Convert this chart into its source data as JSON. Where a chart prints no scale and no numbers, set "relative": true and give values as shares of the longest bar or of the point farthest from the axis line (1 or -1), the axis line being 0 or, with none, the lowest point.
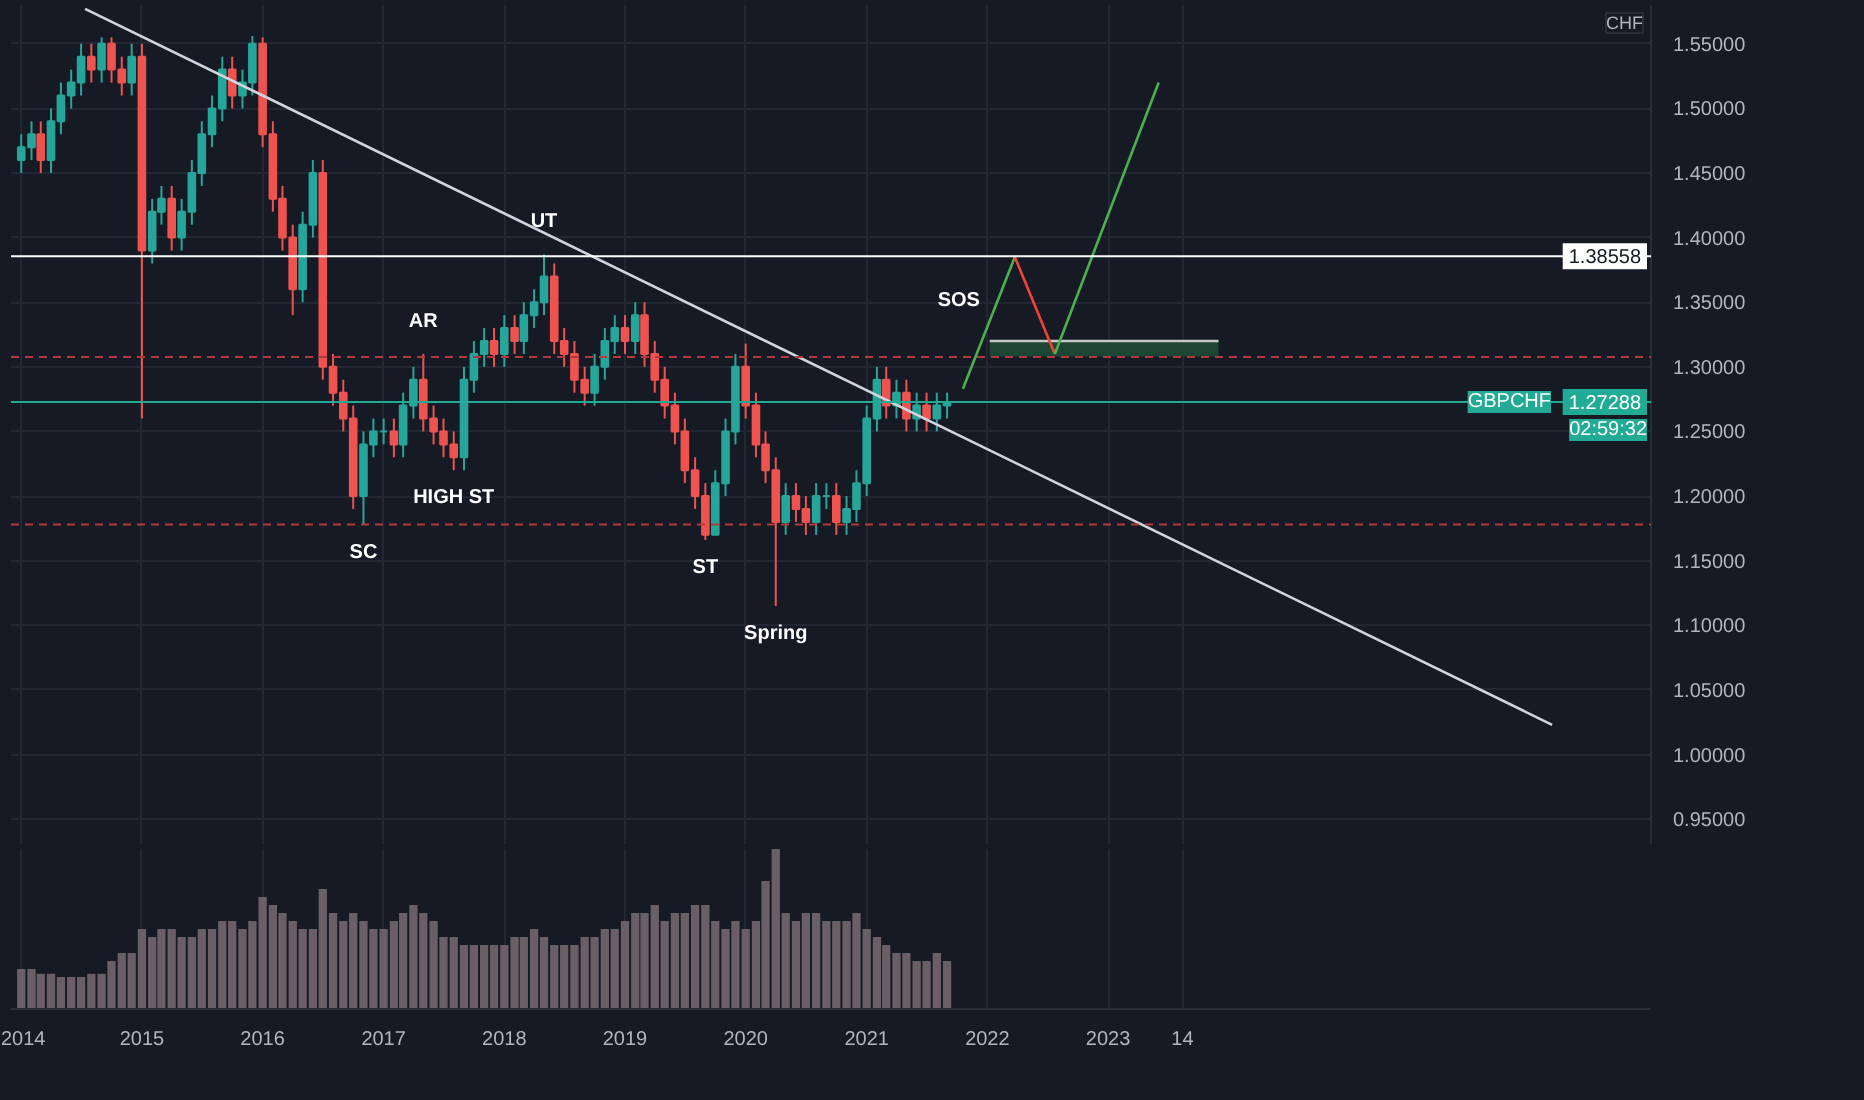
{
  "chart_data": [
    {
      "type": "candlestick",
      "ylabel": "CHF",
      "xlim": [
        "2013-12-01",
        "2027-07-01"
      ],
      "xticks": [
        "2014",
        "2015",
        "2016",
        "2017",
        "2018",
        "2019",
        "2020",
        "2021",
        "2022",
        "2023",
        {
          "value": "2023-08-14",
          "label": null
        }
      ],
      "ylim": [
        0.93,
        1.58
      ],
      "yticks": [
        {
          "value": 0.95,
          "label": "0.95000"
        },
        {
          "value": 1.0,
          "label": "1.00000"
        },
        {
          "value": 1.05,
          "label": "1.05000"
        },
        {
          "value": 1.1,
          "label": "1.10000"
        },
        {
          "value": 1.15,
          "label": "1.15000"
        },
        {
          "value": 1.2,
          "label": "1.20000"
        },
        {
          "value": 1.25,
          "label": "1.25000"
        },
        {
          "value": 1.3,
          "label": "1.30000"
        },
        {
          "value": 1.35,
          "label": "1.35000"
        },
        {
          "value": 1.4,
          "label": "1.40000"
        },
        {
          "value": 1.45,
          "label": "1.45000"
        },
        {
          "value": 1.5,
          "label": "1.50000"
        },
        {
          "value": 1.55,
          "label": "1.55000"
        }
      ],
      "tick_labels": "y",
      "grid": true,
      "x": [
        "2014-01",
        "2014-02",
        "2014-03",
        "2014-04",
        "2014-05",
        "2014-06",
        "2014-07",
        "2014-08",
        "2014-09",
        "2014-10",
        "2014-11",
        "2014-12",
        "2015-01",
        "2015-02",
        "2015-03",
        "2015-04",
        "2015-05",
        "2015-06",
        "2015-07",
        "2015-08",
        "2015-09",
        "2015-10",
        "2015-11",
        "2015-12",
        "2016-01",
        "2016-02",
        "2016-03",
        "2016-04",
        "2016-05",
        "2016-06",
        "2016-07",
        "2016-08",
        "2016-09",
        "2016-10",
        "2016-11",
        "2016-12",
        "2017-01",
        "2017-02",
        "2017-03",
        "2017-04",
        "2017-05",
        "2017-06",
        "2017-07",
        "2017-08",
        "2017-09",
        "2017-10",
        "2017-11",
        "2017-12",
        "2018-01",
        "2018-02",
        "2018-03",
        "2018-04",
        "2018-05",
        "2018-06",
        "2018-07",
        "2018-08",
        "2018-09",
        "2018-10",
        "2018-11",
        "2018-12",
        "2019-01",
        "2019-02",
        "2019-03",
        "2019-04",
        "2019-05",
        "2019-06",
        "2019-07",
        "2019-08",
        "2019-09",
        "2019-10",
        "2019-11",
        "2019-12",
        "2020-01",
        "2020-02",
        "2020-03",
        "2020-04",
        "2020-05",
        "2020-06",
        "2020-07",
        "2020-08",
        "2020-09",
        "2020-10",
        "2020-11",
        "2020-12",
        "2021-01",
        "2021-02",
        "2021-03",
        "2021-04",
        "2021-05",
        "2021-06",
        "2021-07",
        "2021-08",
        "2021-09"
      ],
      "ohlc": [
        [
          1.46,
          1.48,
          1.45,
          1.47
        ],
        [
          1.47,
          1.49,
          1.46,
          1.48
        ],
        [
          1.48,
          1.49,
          1.45,
          1.46
        ],
        [
          1.46,
          1.5,
          1.45,
          1.49
        ],
        [
          1.49,
          1.52,
          1.48,
          1.51
        ],
        [
          1.51,
          1.53,
          1.5,
          1.52
        ],
        [
          1.52,
          1.55,
          1.51,
          1.54
        ],
        [
          1.54,
          1.55,
          1.52,
          1.53
        ],
        [
          1.53,
          1.555,
          1.52,
          1.55
        ],
        [
          1.55,
          1.555,
          1.52,
          1.53
        ],
        [
          1.53,
          1.54,
          1.51,
          1.52
        ],
        [
          1.52,
          1.55,
          1.51,
          1.54
        ],
        [
          1.54,
          1.55,
          1.26,
          1.39
        ],
        [
          1.39,
          1.43,
          1.38,
          1.42
        ],
        [
          1.42,
          1.44,
          1.41,
          1.43
        ],
        [
          1.43,
          1.44,
          1.39,
          1.4
        ],
        [
          1.4,
          1.43,
          1.39,
          1.42
        ],
        [
          1.42,
          1.46,
          1.41,
          1.45
        ],
        [
          1.45,
          1.49,
          1.44,
          1.48
        ],
        [
          1.48,
          1.51,
          1.47,
          1.5
        ],
        [
          1.5,
          1.54,
          1.49,
          1.53
        ],
        [
          1.53,
          1.54,
          1.5,
          1.51
        ],
        [
          1.51,
          1.53,
          1.5,
          1.52
        ],
        [
          1.52,
          1.556,
          1.51,
          1.55
        ],
        [
          1.55,
          1.555,
          1.47,
          1.48
        ],
        [
          1.48,
          1.49,
          1.42,
          1.43
        ],
        [
          1.43,
          1.44,
          1.39,
          1.4
        ],
        [
          1.4,
          1.41,
          1.34,
          1.36
        ],
        [
          1.36,
          1.42,
          1.35,
          1.41
        ],
        [
          1.41,
          1.46,
          1.4,
          1.45
        ],
        [
          1.45,
          1.46,
          1.29,
          1.3
        ],
        [
          1.3,
          1.31,
          1.27,
          1.28
        ],
        [
          1.28,
          1.29,
          1.25,
          1.26
        ],
        [
          1.26,
          1.27,
          1.19,
          1.2
        ],
        [
          1.2,
          1.25,
          1.178,
          1.24
        ],
        [
          1.24,
          1.26,
          1.23,
          1.25
        ],
        [
          1.25,
          1.26,
          1.24,
          1.25
        ],
        [
          1.25,
          1.26,
          1.23,
          1.24
        ],
        [
          1.24,
          1.28,
          1.23,
          1.27
        ],
        [
          1.27,
          1.3,
          1.26,
          1.29
        ],
        [
          1.29,
          1.31,
          1.25,
          1.26
        ],
        [
          1.26,
          1.27,
          1.24,
          1.25
        ],
        [
          1.25,
          1.26,
          1.23,
          1.24
        ],
        [
          1.24,
          1.25,
          1.22,
          1.23
        ],
        [
          1.23,
          1.3,
          1.22,
          1.29
        ],
        [
          1.29,
          1.32,
          1.28,
          1.31
        ],
        [
          1.31,
          1.33,
          1.3,
          1.32
        ],
        [
          1.32,
          1.33,
          1.3,
          1.31
        ],
        [
          1.31,
          1.34,
          1.3,
          1.33
        ],
        [
          1.33,
          1.34,
          1.31,
          1.32
        ],
        [
          1.32,
          1.35,
          1.31,
          1.34
        ],
        [
          1.34,
          1.36,
          1.33,
          1.35
        ],
        [
          1.35,
          1.387,
          1.34,
          1.37
        ],
        [
          1.37,
          1.38,
          1.31,
          1.32
        ],
        [
          1.32,
          1.33,
          1.3,
          1.31
        ],
        [
          1.31,
          1.32,
          1.28,
          1.29
        ],
        [
          1.29,
          1.3,
          1.27,
          1.28
        ],
        [
          1.28,
          1.31,
          1.27,
          1.3
        ],
        [
          1.3,
          1.33,
          1.29,
          1.32
        ],
        [
          1.32,
          1.34,
          1.31,
          1.33
        ],
        [
          1.33,
          1.34,
          1.31,
          1.32
        ],
        [
          1.32,
          1.35,
          1.31,
          1.34
        ],
        [
          1.34,
          1.35,
          1.3,
          1.31
        ],
        [
          1.31,
          1.32,
          1.28,
          1.29
        ],
        [
          1.29,
          1.3,
          1.26,
          1.27
        ],
        [
          1.27,
          1.28,
          1.24,
          1.25
        ],
        [
          1.25,
          1.26,
          1.21,
          1.22
        ],
        [
          1.22,
          1.23,
          1.19,
          1.2
        ],
        [
          1.2,
          1.21,
          1.166,
          1.17
        ],
        [
          1.17,
          1.22,
          1.17,
          1.21
        ],
        [
          1.21,
          1.26,
          1.2,
          1.25
        ],
        [
          1.25,
          1.31,
          1.24,
          1.3
        ],
        [
          1.3,
          1.318,
          1.26,
          1.27
        ],
        [
          1.27,
          1.28,
          1.23,
          1.24
        ],
        [
          1.24,
          1.25,
          1.21,
          1.22
        ],
        [
          1.22,
          1.23,
          1.115,
          1.18
        ],
        [
          1.18,
          1.21,
          1.17,
          1.2
        ],
        [
          1.2,
          1.21,
          1.18,
          1.19
        ],
        [
          1.19,
          1.2,
          1.17,
          1.18
        ],
        [
          1.18,
          1.21,
          1.17,
          1.2
        ],
        [
          1.2,
          1.21,
          1.19,
          1.2
        ],
        [
          1.2,
          1.21,
          1.17,
          1.18
        ],
        [
          1.18,
          1.2,
          1.17,
          1.19
        ],
        [
          1.19,
          1.22,
          1.18,
          1.21
        ],
        [
          1.21,
          1.27,
          1.2,
          1.26
        ],
        [
          1.26,
          1.3,
          1.25,
          1.29
        ],
        [
          1.29,
          1.3,
          1.26,
          1.27
        ],
        [
          1.27,
          1.29,
          1.26,
          1.28
        ],
        [
          1.28,
          1.29,
          1.25,
          1.26
        ],
        [
          1.26,
          1.28,
          1.25,
          1.27
        ],
        [
          1.27,
          1.28,
          1.25,
          1.26
        ],
        [
          1.26,
          1.28,
          1.25,
          1.27
        ],
        [
          1.27,
          1.28,
          1.26,
          1.27288
        ]
      ],
      "series": [
        {
          "type": "line",
          "color": "#c8c8c8",
          "x": [
            "2022-01-08",
            "2023-12-01"
          ],
          "values": [
            1.32,
            1.32
          ],
          "lower": [
            1.308,
            1.308
          ],
          "upper": [
            1.32,
            1.32
          ]
        },
        {
          "type": "line",
          "color": "#d1d4dc",
          "x": [
            "2014-07-13",
            "2026-09-05"
          ],
          "values": [
            1.577,
            1.023
          ]
        },
        {
          "type": "line",
          "color": "#4caf50",
          "x": [
            "2021-10-19",
            "2022-03-25"
          ],
          "values": [
            1.283,
            1.385
          ]
        },
        {
          "type": "line",
          "color": "#f44336",
          "x": [
            "2022-03-25",
            "2022-07-24"
          ],
          "values": [
            1.385,
            1.31
          ]
        },
        {
          "type": "line",
          "color": "#4caf50",
          "x": [
            "2022-07-24",
            "2023-06-03"
          ],
          "values": [
            1.31,
            1.52
          ]
        }
      ],
      "ref_lines": [
        {
          "axis": "y",
          "value": 1.38558,
          "label": "1.38558",
          "color": "#ffffff",
          "line_style": "solid"
        },
        {
          "axis": "y",
          "value": 1.3076,
          "color": "#b23a3a",
          "line_style": "dashed"
        },
        {
          "axis": "y",
          "value": 1.178,
          "color": "#b23a3a",
          "line_style": "dashed"
        },
        {
          "axis": "y",
          "value": 1.27288,
          "label": "1.27288",
          "color": "#22ab94",
          "line_style": "solid"
        }
      ],
      "annotations": [
        {
          "text": "UT",
          "x": "2018-05",
          "y": 1.387
        },
        {
          "text": "AR",
          "x": "2017-05",
          "y": 1.31
        },
        {
          "text": "HIGH ST",
          "x": "2017-08",
          "y": 1.22
        },
        {
          "text": "SC",
          "x": "2016-11",
          "y": 1.178
        },
        {
          "text": "ST",
          "x": "2019-09",
          "y": 1.166
        },
        {
          "text": "Spring",
          "x": "2020-04",
          "y": 1.115
        },
        {
          "text": "SOS",
          "x": "2022-03-25",
          "y": 1.385
        },
        {
          "text": "GBPCHF",
          "y": 1.27288
        },
        {
          "text": "02:59:32",
          "y": 1.27288
        }
      ]
    },
    {
      "type": "bar",
      "relative": true,
      "tick_labels": "x",
      "grid": true,
      "color": "#6b5f66",
      "xlim": [
        "2013-12-01",
        "2027-07-01"
      ],
      "xticks": [
        "2014",
        "2015",
        "2016",
        "2017",
        "2018",
        "2019",
        "2020",
        "2021",
        "2022",
        "2023",
        {
          "value": "2023-08-14",
          "label": "14"
        }
      ],
      "x": [
        "2014-01",
        "2014-02",
        "2014-03",
        "2014-04",
        "2014-05",
        "2014-06",
        "2014-07",
        "2014-08",
        "2014-09",
        "2014-10",
        "2014-11",
        "2014-12",
        "2015-01",
        "2015-02",
        "2015-03",
        "2015-04",
        "2015-05",
        "2015-06",
        "2015-07",
        "2015-08",
        "2015-09",
        "2015-10",
        "2015-11",
        "2015-12",
        "2016-01",
        "2016-02",
        "2016-03",
        "2016-04",
        "2016-05",
        "2016-06",
        "2016-07",
        "2016-08",
        "2016-09",
        "2016-10",
        "2016-11",
        "2016-12",
        "2017-01",
        "2017-02",
        "2017-03",
        "2017-04",
        "2017-05",
        "2017-06",
        "2017-07",
        "2017-08",
        "2017-09",
        "2017-10",
        "2017-11",
        "2017-12",
        "2018-01",
        "2018-02",
        "2018-03",
        "2018-04",
        "2018-05",
        "2018-06",
        "2018-07",
        "2018-08",
        "2018-09",
        "2018-10",
        "2018-11",
        "2018-12",
        "2019-01",
        "2019-02",
        "2019-03",
        "2019-04",
        "2019-05",
        "2019-06",
        "2019-07",
        "2019-08",
        "2019-09",
        "2019-10",
        "2019-11",
        "2019-12",
        "2020-01",
        "2020-02",
        "2020-03",
        "2020-04",
        "2020-05",
        "2020-06",
        "2020-07",
        "2020-08",
        "2020-09",
        "2020-10",
        "2020-11",
        "2020-12",
        "2021-01",
        "2021-02",
        "2021-03",
        "2021-04",
        "2021-05",
        "2021-06",
        "2021-07",
        "2021-08",
        "2021-09"
      ],
      "values": [
        0.25,
        0.25,
        0.22,
        0.22,
        0.2,
        0.2,
        0.2,
        0.22,
        0.22,
        0.3,
        0.35,
        0.35,
        0.5,
        0.45,
        0.5,
        0.5,
        0.45,
        0.45,
        0.5,
        0.5,
        0.55,
        0.55,
        0.5,
        0.55,
        0.7,
        0.65,
        0.6,
        0.55,
        0.5,
        0.5,
        0.75,
        0.6,
        0.55,
        0.6,
        0.55,
        0.5,
        0.5,
        0.55,
        0.6,
        0.65,
        0.6,
        0.55,
        0.45,
        0.45,
        0.4,
        0.4,
        0.4,
        0.4,
        0.4,
        0.45,
        0.45,
        0.5,
        0.45,
        0.4,
        0.4,
        0.4,
        0.45,
        0.45,
        0.5,
        0.5,
        0.55,
        0.6,
        0.6,
        0.65,
        0.55,
        0.6,
        0.6,
        0.65,
        0.65,
        0.55,
        0.5,
        0.55,
        0.5,
        0.55,
        0.8,
        1.0,
        0.6,
        0.55,
        0.6,
        0.6,
        0.55,
        0.55,
        0.55,
        0.6,
        0.5,
        0.45,
        0.4,
        0.35,
        0.35,
        0.3,
        0.3,
        0.35,
        0.3
      ]
    }
  ]
}
